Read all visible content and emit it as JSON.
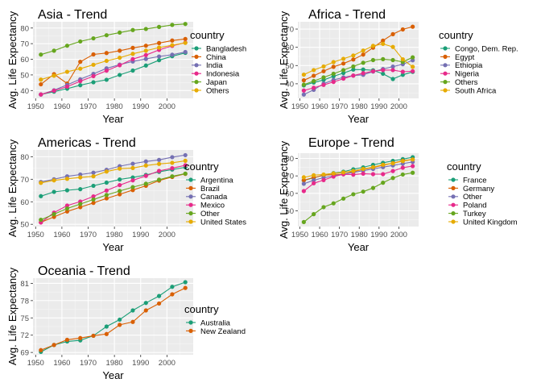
{
  "chart_data": [
    {
      "type": "line",
      "title": "Asia - Trend",
      "xlabel": "Year",
      "ylabel": "Avg. Life Expectancy",
      "legend_title": "country",
      "legend_position": "right",
      "grid": true,
      "xlim": [
        1949,
        2010
      ],
      "ylim": [
        35,
        84
      ],
      "xticks": [
        1950,
        1960,
        1970,
        1980,
        1990,
        2000
      ],
      "yticks": [
        40,
        50,
        60,
        70,
        80
      ],
      "x": [
        1952,
        1957,
        1962,
        1967,
        1972,
        1977,
        1982,
        1987,
        1992,
        1997,
        2002,
        2007
      ],
      "series": [
        {
          "name": "Bangladesh",
          "color": "#1B9E77",
          "values": [
            37.5,
            39.3,
            41.2,
            43.4,
            45.3,
            46.9,
            50.0,
            52.8,
            56.0,
            59.4,
            62.0,
            64.1
          ]
        },
        {
          "name": "China",
          "color": "#D95F02",
          "values": [
            44.0,
            50.5,
            44.5,
            58.4,
            63.1,
            64.0,
            65.5,
            67.3,
            68.7,
            70.4,
            72.0,
            73.0
          ]
        },
        {
          "name": "India",
          "color": "#7570B3",
          "values": [
            37.4,
            40.2,
            43.6,
            47.2,
            50.7,
            54.2,
            56.6,
            58.6,
            60.2,
            61.8,
            62.9,
            64.7
          ]
        },
        {
          "name": "Indonesia",
          "color": "#E7298A",
          "values": [
            37.5,
            39.9,
            42.5,
            46.0,
            49.2,
            52.7,
            56.2,
            60.1,
            62.7,
            66.0,
            68.6,
            70.7
          ]
        },
        {
          "name": "Japan",
          "color": "#66A61E",
          "values": [
            63.0,
            65.5,
            68.7,
            71.4,
            73.4,
            75.4,
            77.1,
            78.7,
            79.4,
            80.7,
            82.0,
            82.6
          ]
        },
        {
          "name": "Others",
          "color": "#E6AB02",
          "values": [
            47.0,
            49.5,
            52.0,
            54.0,
            56.5,
            59.0,
            61.0,
            63.5,
            65.5,
            67.5,
            69.0,
            70.5
          ]
        }
      ]
    },
    {
      "type": "line",
      "title": "Africa - Trend",
      "xlabel": "Year",
      "ylabel": "Avg. Life Expectancy",
      "legend_title": "country",
      "legend_position": "right",
      "grid": true,
      "xlim": [
        1949,
        2010
      ],
      "ylim": [
        32,
        74
      ],
      "xticks": [
        1950,
        1960,
        1970,
        1980,
        1990,
        2000
      ],
      "yticks": [
        30,
        40,
        50,
        60,
        70
      ],
      "x": [
        1952,
        1957,
        1962,
        1967,
        1972,
        1977,
        1982,
        1987,
        1992,
        1997,
        2002,
        2007
      ],
      "series": [
        {
          "name": "Congo, Dem. Rep.",
          "color": "#1B9E77",
          "values": [
            39.1,
            40.7,
            42.1,
            44.1,
            45.9,
            47.8,
            47.8,
            47.4,
            45.5,
            42.6,
            44.9,
            46.5
          ]
        },
        {
          "name": "Egypt",
          "color": "#D95F02",
          "values": [
            41.9,
            44.4,
            46.9,
            49.3,
            51.1,
            53.3,
            56.0,
            59.8,
            63.7,
            67.2,
            69.8,
            71.3
          ]
        },
        {
          "name": "Ethiopia",
          "color": "#7570B3",
          "values": [
            34.1,
            36.7,
            40.1,
            42.1,
            43.5,
            44.5,
            44.9,
            46.7,
            48.1,
            49.4,
            50.7,
            52.9
          ]
        },
        {
          "name": "Nigeria",
          "color": "#E7298A",
          "values": [
            36.3,
            37.8,
            39.4,
            41.0,
            42.8,
            44.5,
            45.8,
            46.9,
            47.5,
            47.5,
            46.6,
            46.9
          ]
        },
        {
          "name": "Others",
          "color": "#66A61E",
          "values": [
            39.5,
            41.5,
            43.5,
            45.5,
            47.5,
            49.5,
            51.5,
            53.0,
            53.5,
            53.0,
            52.0,
            54.5
          ]
        },
        {
          "name": "South Africa",
          "color": "#E6AB02",
          "values": [
            45.0,
            47.5,
            49.5,
            51.9,
            53.7,
            55.5,
            58.2,
            60.8,
            61.9,
            60.2,
            53.4,
            49.3
          ]
        }
      ]
    },
    {
      "type": "line",
      "title": "Americas - Trend",
      "xlabel": "Year",
      "ylabel": "Avg. Life Expectancy",
      "legend_title": "country",
      "legend_position": "right",
      "grid": true,
      "xlim": [
        1949,
        2010
      ],
      "ylim": [
        49,
        83
      ],
      "xticks": [
        1950,
        1960,
        1970,
        1980,
        1990,
        2000
      ],
      "yticks": [
        50,
        60,
        70,
        80
      ],
      "x": [
        1952,
        1957,
        1962,
        1967,
        1972,
        1977,
        1982,
        1987,
        1992,
        1997,
        2002,
        2007
      ],
      "series": [
        {
          "name": "Argentina",
          "color": "#1B9E77",
          "values": [
            62.5,
            64.4,
            65.1,
            65.6,
            67.1,
            68.5,
            69.9,
            70.8,
            71.9,
            73.3,
            74.3,
            75.3
          ]
        },
        {
          "name": "Brazil",
          "color": "#D95F02",
          "values": [
            50.9,
            53.3,
            55.7,
            57.6,
            59.5,
            61.5,
            63.3,
            65.2,
            67.1,
            69.4,
            71.0,
            72.4
          ]
        },
        {
          "name": "Canada",
          "color": "#7570B3",
          "values": [
            68.8,
            70.0,
            71.3,
            72.1,
            72.9,
            74.2,
            75.8,
            76.9,
            77.9,
            78.6,
            79.8,
            80.7
          ]
        },
        {
          "name": "Mexico",
          "color": "#E7298A",
          "values": [
            50.8,
            55.2,
            58.3,
            60.1,
            62.4,
            65.0,
            67.4,
            69.5,
            71.5,
            73.7,
            74.9,
            76.2
          ]
        },
        {
          "name": "Other",
          "color": "#66A61E",
          "values": [
            52.0,
            54.5,
            57.0,
            59.0,
            61.0,
            63.0,
            64.8,
            66.5,
            68.0,
            69.8,
            71.3,
            72.5
          ]
        },
        {
          "name": "United States",
          "color": "#E6AB02",
          "values": [
            68.4,
            69.5,
            70.2,
            70.8,
            71.3,
            73.4,
            74.7,
            75.0,
            76.1,
            76.8,
            77.3,
            78.2
          ]
        }
      ]
    },
    {
      "type": "line",
      "title": "Europe - Trend",
      "xlabel": "Year",
      "ylabel": "Avg. Life Expectancy",
      "legend_title": "country",
      "legend_position": "right",
      "grid": true,
      "xlim": [
        1949,
        2010
      ],
      "ylim": [
        41,
        83
      ],
      "xticks": [
        1950,
        1960,
        1970,
        1980,
        1990,
        2000
      ],
      "yticks": [
        40,
        50,
        60,
        70,
        80
      ],
      "x": [
        1952,
        1957,
        1962,
        1967,
        1972,
        1977,
        1982,
        1987,
        1992,
        1997,
        2002,
        2007
      ],
      "series": [
        {
          "name": "France",
          "color": "#1B9E77",
          "values": [
            67.4,
            68.9,
            70.5,
            71.6,
            72.4,
            73.8,
            74.9,
            76.3,
            77.5,
            78.6,
            79.6,
            80.7
          ]
        },
        {
          "name": "Germany",
          "color": "#D95F02",
          "values": [
            67.5,
            69.1,
            70.3,
            70.8,
            71.0,
            72.5,
            73.8,
            74.8,
            76.1,
            77.3,
            78.7,
            79.4
          ]
        },
        {
          "name": "Other",
          "color": "#7570B3",
          "values": [
            65.5,
            67.5,
            69.0,
            70.0,
            71.0,
            72.0,
            73.0,
            74.0,
            75.0,
            76.0,
            77.0,
            78.0
          ]
        },
        {
          "name": "Poland",
          "color": "#E7298A",
          "values": [
            61.3,
            65.8,
            67.6,
            69.6,
            70.9,
            70.7,
            71.3,
            71.0,
            71.0,
            72.8,
            74.7,
            75.6
          ]
        },
        {
          "name": "Turkey",
          "color": "#66A61E",
          "values": [
            43.6,
            48.1,
            52.1,
            54.3,
            57.0,
            59.5,
            61.0,
            63.1,
            66.1,
            68.8,
            70.8,
            71.8
          ]
        },
        {
          "name": "United Kingdom",
          "color": "#E6AB02",
          "values": [
            69.2,
            70.4,
            70.8,
            71.4,
            72.0,
            72.8,
            74.0,
            75.0,
            76.4,
            77.2,
            78.5,
            79.4
          ]
        }
      ]
    },
    {
      "type": "line",
      "title": "Oceania - Trend",
      "xlabel": "Year",
      "ylabel": "Avg. Life Expectancy",
      "legend_title": "country",
      "legend_position": "right",
      "grid": true,
      "xlim": [
        1949,
        2010
      ],
      "ylim": [
        68.6,
        81.9
      ],
      "xticks": [
        1950,
        1960,
        1970,
        1980,
        1990,
        2000
      ],
      "yticks": [
        69,
        72,
        75,
        78,
        81
      ],
      "x": [
        1952,
        1957,
        1962,
        1967,
        1972,
        1977,
        1982,
        1987,
        1992,
        1997,
        2002,
        2007
      ],
      "series": [
        {
          "name": "Australia",
          "color": "#1B9E77",
          "values": [
            69.1,
            70.3,
            70.9,
            71.1,
            71.9,
            73.5,
            74.7,
            76.3,
            77.6,
            78.8,
            80.4,
            81.2
          ]
        },
        {
          "name": "New Zealand",
          "color": "#D95F02",
          "values": [
            69.4,
            70.3,
            71.2,
            71.5,
            71.9,
            72.2,
            73.8,
            74.3,
            76.3,
            77.5,
            79.1,
            80.2
          ]
        }
      ]
    }
  ]
}
